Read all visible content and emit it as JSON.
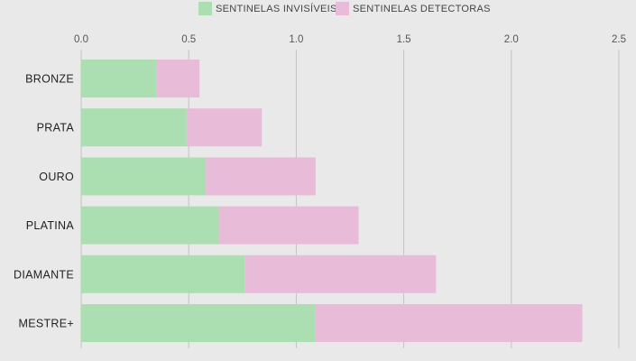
{
  "chart_data": {
    "type": "bar",
    "orientation": "horizontal",
    "stacked": true,
    "categories": [
      "BRONZE",
      "PRATA",
      "OURO",
      "PLATINA",
      "DIAMANTE",
      "MESTRE+"
    ],
    "series": [
      {
        "name": "SENTINELAS INVISÍVEIS",
        "color": "#abdfb2",
        "values": [
          0.35,
          0.49,
          0.58,
          0.64,
          0.76,
          1.09
        ]
      },
      {
        "name": "SENTINELAS DETECTORAS",
        "color": "#e8bcd8",
        "values": [
          0.2,
          0.35,
          0.51,
          0.65,
          0.89,
          1.24
        ]
      }
    ],
    "xlim": [
      0,
      2.5
    ],
    "xticks": [
      "0.0",
      "0.5",
      "1.0",
      "1.5",
      "2.0",
      "2.5"
    ],
    "xtick_values": [
      0,
      0.5,
      1.0,
      1.5,
      2.0,
      2.5
    ],
    "grid": true,
    "legend_position": "top-center",
    "title": "",
    "xlabel": "",
    "ylabel": ""
  }
}
